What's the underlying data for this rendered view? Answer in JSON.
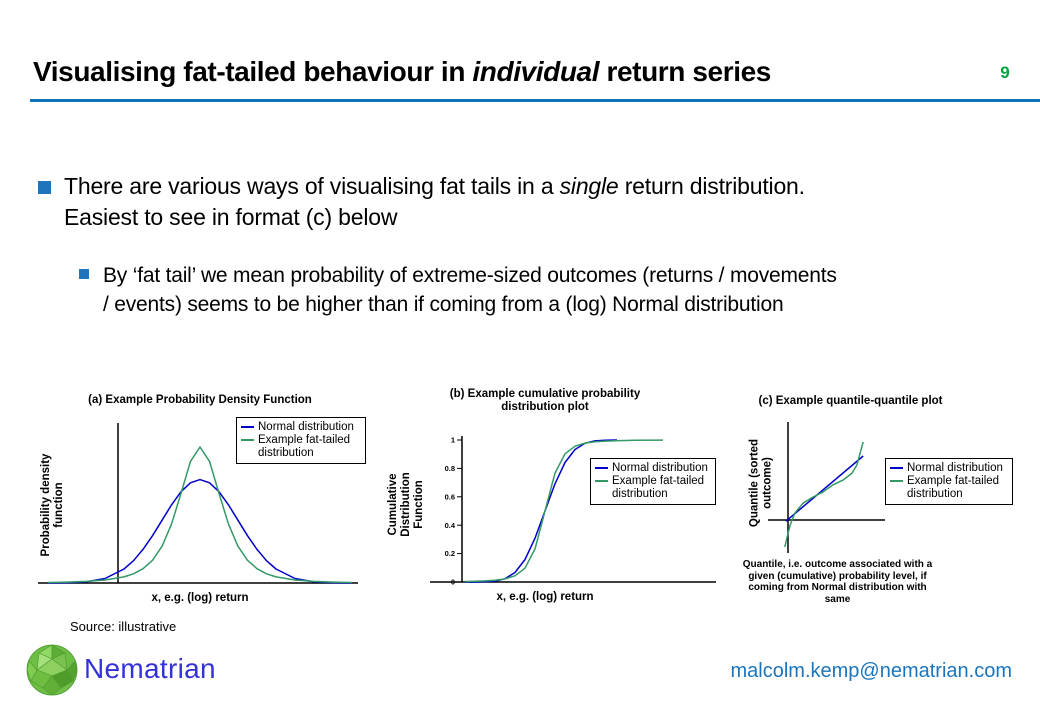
{
  "header": {
    "title_pre": "Visualising fat-tailed behaviour in ",
    "title_italic": "individual",
    "title_post": " return series",
    "page_number": "9",
    "page_number_color": "#00A43B",
    "rule_color": "#1072BA",
    "bullet_color": "#1F75BB"
  },
  "bullets": {
    "b1_pre": "There are various ways of visualising fat tails in a ",
    "b1_italic": "single",
    "b1_post": " return distribution.",
    "b1_line2": "Easiest to see in format (c) below",
    "b2_line1": "By ‘fat tail’ we mean probability of extreme-sized outcomes (returns / movements",
    "b2_line2": "/ events) seems to be higher than if coming from a (log) Normal distribution"
  },
  "legend": {
    "items": [
      {
        "label": "Normal distribution",
        "color": "#0000CC"
      },
      {
        "label": "Example fat-tailed distribution",
        "color": "#339966"
      }
    ]
  },
  "chart_data": [
    {
      "type": "line",
      "title": "(a) Example Probability Density Function",
      "xlabel": "x, e.g. (log) return",
      "ylabel": "Probability density function",
      "legend_position": "right",
      "grid": false,
      "xlim": [
        -4,
        4
      ],
      "ylim": [
        0,
        1
      ],
      "series": [
        {
          "name": "Normal distribution",
          "color": "#0000CC",
          "x": [
            -4,
            -3.5,
            -3,
            -2.5,
            -2,
            -1.75,
            -1.5,
            -1.25,
            -1,
            -0.75,
            -0.5,
            -0.25,
            0,
            0.25,
            0.5,
            0.75,
            1,
            1.25,
            1.5,
            1.75,
            2,
            2.5,
            3,
            3.5,
            4
          ],
          "y": [
            0.0002,
            0.0017,
            0.008,
            0.033,
            0.103,
            0.164,
            0.247,
            0.348,
            0.461,
            0.574,
            0.671,
            0.737,
            0.76,
            0.737,
            0.671,
            0.574,
            0.461,
            0.348,
            0.247,
            0.164,
            0.103,
            0.033,
            0.008,
            0.0017,
            0.0002
          ]
        },
        {
          "name": "Example fat-tailed distribution",
          "color": "#339966",
          "x": [
            -4,
            -3.5,
            -3,
            -2.5,
            -2,
            -1.75,
            -1.5,
            -1.25,
            -1,
            -0.75,
            -0.5,
            -0.25,
            0,
            0.25,
            0.5,
            0.75,
            1,
            1.25,
            1.5,
            1.75,
            2,
            2.5,
            3,
            3.5,
            4
          ],
          "y": [
            0.004,
            0.0066,
            0.0115,
            0.0217,
            0.045,
            0.068,
            0.105,
            0.167,
            0.27,
            0.432,
            0.659,
            0.894,
            1.0,
            0.894,
            0.659,
            0.432,
            0.27,
            0.167,
            0.105,
            0.068,
            0.045,
            0.0217,
            0.0115,
            0.0066,
            0.004
          ]
        }
      ]
    },
    {
      "type": "line",
      "title": "(b) Example cumulative probability distribution plot",
      "xlabel": "x, e.g. (log) return",
      "ylabel": "Cumulative Distribution Function",
      "legend_position": "right",
      "grid": false,
      "xlim": [
        -4,
        5.9
      ],
      "ylim": [
        0,
        1
      ],
      "yticks": [
        {
          "v": 0,
          "label": "0"
        },
        {
          "v": 0.2,
          "label": "0.2"
        },
        {
          "v": 0.4,
          "label": "0.4"
        },
        {
          "v": 0.6,
          "label": "0.6"
        },
        {
          "v": 0.8,
          "label": "0.8"
        },
        {
          "v": 1,
          "label": "1"
        }
      ],
      "series": [
        {
          "name": "Normal distribution",
          "color": "#0000CC",
          "x": [
            -4,
            -3.5,
            -3,
            -2.5,
            -2,
            -1.5,
            -1,
            -0.5,
            0,
            0.5,
            1,
            1.5,
            2,
            2.5,
            3,
            3.3,
            3.6
          ],
          "y": [
            0.0001,
            0.0002,
            0.0013,
            0.0062,
            0.0228,
            0.0668,
            0.1587,
            0.3085,
            0.5,
            0.6915,
            0.8413,
            0.9332,
            0.9772,
            0.9938,
            0.9987,
            0.9995,
            0.9998
          ]
        },
        {
          "name": "Example fat-tailed distribution",
          "color": "#339966",
          "x": [
            -4,
            -3.5,
            -3,
            -2.5,
            -2,
            -1.5,
            -1,
            -0.5,
            0,
            0.5,
            1,
            1.5,
            2,
            2.5,
            3,
            3.5,
            4,
            4.5,
            5.9
          ],
          "y": [
            0.0033,
            0.005,
            0.0077,
            0.0126,
            0.022,
            0.044,
            0.097,
            0.233,
            0.5,
            0.767,
            0.903,
            0.956,
            0.978,
            0.9874,
            0.9923,
            0.995,
            0.9967,
            0.998,
            0.999
          ]
        }
      ]
    },
    {
      "type": "line",
      "title": "(c) Example quantile-quantile plot",
      "xlabel": "Quantile, i.e. outcome associated with a given (cumulative) probability level, if coming from Normal distribution with same",
      "ylabel": "Quantile (sorted outcome)",
      "legend_position": "right",
      "grid": false,
      "xlim": [
        -0.66,
        2.93
      ],
      "ylim": [
        -1.28,
        3.56
      ],
      "series": [
        {
          "name": "Normal distribution",
          "color": "#0000CC",
          "x": [
            -0.06,
            2.16
          ],
          "y": [
            -0.04,
            2.28
          ]
        },
        {
          "name": "Example fat-tailed distribution",
          "color": "#339966",
          "x": [
            -0.09,
            -0.03,
            0.06,
            0.2,
            0.43,
            0.72,
            1.01,
            1.29,
            1.58,
            1.84,
            1.98,
            2.07,
            2.16
          ],
          "y": [
            -0.96,
            -0.64,
            -0.18,
            0.25,
            0.6,
            0.82,
            1.0,
            1.25,
            1.42,
            1.67,
            1.96,
            2.38,
            2.78
          ]
        }
      ]
    }
  ],
  "footer": {
    "source": "Source: illustrative",
    "brand": "Nematrian",
    "brand_color": "#3232D7",
    "email": "malcolm.kemp@nematrian.com",
    "email_color": "#1B75BC",
    "logo": "nematrian-polyhedron-logo"
  }
}
